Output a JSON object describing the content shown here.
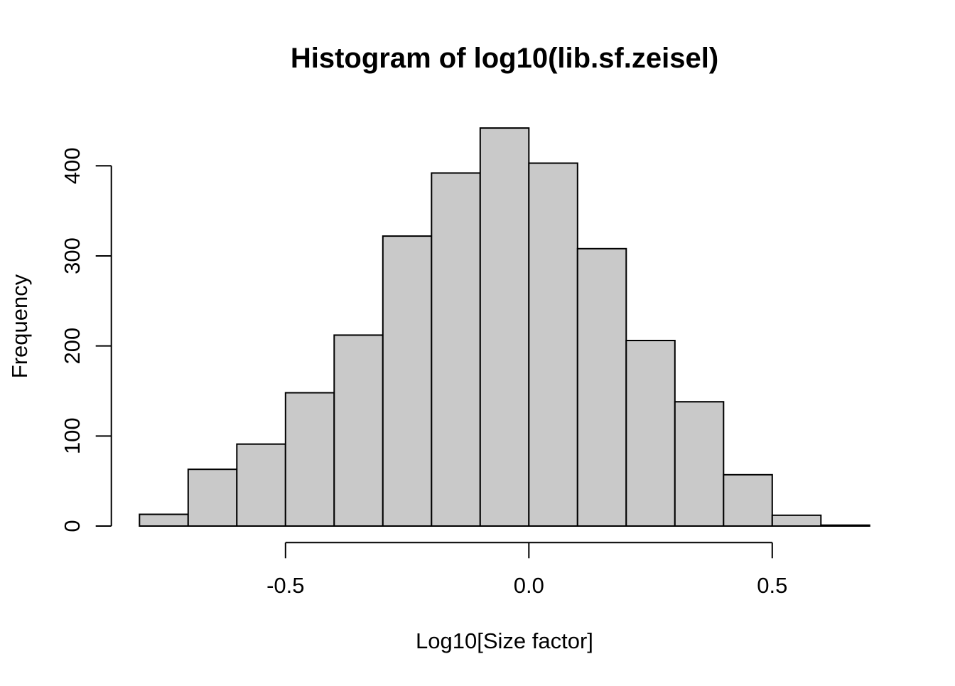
{
  "figure": {
    "title": "Histogram of log10(lib.sf.zeisel)",
    "xlabel": "Log10[Size factor]",
    "ylabel": "Frequency"
  },
  "chart_data": {
    "type": "bar",
    "subtype": "histogram",
    "title": "Histogram of log10(lib.sf.zeisel)",
    "xlabel": "Log10[Size factor]",
    "ylabel": "Frequency",
    "bin_start": -0.8,
    "bin_width": 0.1,
    "bin_edges": [
      -0.8,
      -0.7,
      -0.6,
      -0.5,
      -0.4,
      -0.3,
      -0.2,
      -0.1,
      0.0,
      0.1,
      0.2,
      0.3,
      0.4,
      0.5,
      0.6,
      0.7
    ],
    "values": [
      13,
      63,
      91,
      148,
      212,
      322,
      392,
      442,
      403,
      308,
      206,
      138,
      57,
      12,
      1
    ],
    "xlim": [
      -0.8,
      0.7
    ],
    "ylim": [
      0,
      460
    ],
    "x_ticks": [
      {
        "value": -0.5,
        "label": "-0.5"
      },
      {
        "value": 0.0,
        "label": "0.0"
      },
      {
        "value": 0.5,
        "label": "0.5"
      }
    ],
    "y_ticks": [
      {
        "value": 0,
        "label": "0"
      },
      {
        "value": 100,
        "label": "100"
      },
      {
        "value": 200,
        "label": "200"
      },
      {
        "value": 300,
        "label": "300"
      },
      {
        "value": 400,
        "label": "400"
      }
    ],
    "grid": false,
    "legend": false,
    "colors": {
      "bar_fill": "#C9C9C9",
      "bar_border": "#000000",
      "axis": "#000000",
      "text": "#000000",
      "background": "#FFFFFF"
    }
  }
}
